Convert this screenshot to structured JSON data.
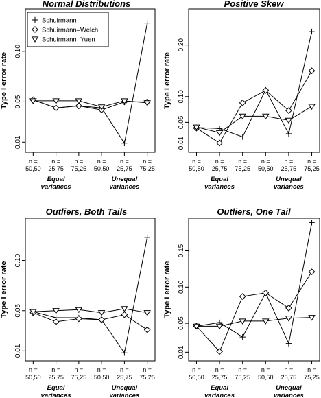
{
  "chart_data": [
    {
      "type": "line",
      "title": "Normal Distributions",
      "ylabel": "Type I error rate",
      "yticks": [
        0.01,
        0.05,
        0.1
      ],
      "ytick_labels": [
        "0.01",
        "0.05",
        "0.10"
      ],
      "ylim": [
        0.0,
        0.142
      ],
      "categories": [
        "n = 50,50",
        "n = 25,75",
        "n = 75,25",
        "n = 50,50",
        "n = 25,75",
        "n = 75,25"
      ],
      "groups": [
        {
          "label": "Equal variances"
        },
        {
          "label": "Unequal variances"
        }
      ],
      "legend": "top-left",
      "series": [
        {
          "name": "Schuirmann",
          "marker": "plus",
          "values": [
            0.052,
            0.044,
            0.046,
            0.044,
            0.009,
            0.128
          ]
        },
        {
          "name": "Schuirmann–Welch",
          "marker": "diamond",
          "values": [
            0.052,
            0.044,
            0.046,
            0.042,
            0.05,
            0.05
          ]
        },
        {
          "name": "Schuirmann–Yuen",
          "marker": "triangle",
          "values": [
            0.051,
            0.051,
            0.051,
            0.045,
            0.051,
            0.049
          ]
        }
      ]
    },
    {
      "type": "line",
      "title": "Positive Skew",
      "ylabel": "Type I error rate",
      "yticks": [
        0.01,
        0.05,
        0.1,
        0.2
      ],
      "ytick_labels": [
        "0.01",
        "0.05",
        "0.10",
        "0.20"
      ],
      "ylim": [
        -0.008,
        0.27
      ],
      "categories": [
        "n = 50,50",
        "n = 25,75",
        "n = 75,25",
        "n = 50,50",
        "n = 25,75",
        "n = 75,25"
      ],
      "groups": [
        {
          "label": "Equal variances"
        },
        {
          "label": "Unequal variances"
        }
      ],
      "series": [
        {
          "name": "Schuirmann",
          "marker": "plus",
          "values": [
            0.04,
            0.038,
            0.022,
            0.113,
            0.028,
            0.226
          ]
        },
        {
          "name": "Schuirmann–Welch",
          "marker": "diamond",
          "values": [
            0.039,
            0.01,
            0.088,
            0.112,
            0.073,
            0.15
          ]
        },
        {
          "name": "Schuirmann–Yuen",
          "marker": "triangle",
          "values": [
            0.041,
            0.03,
            0.062,
            0.062,
            0.054,
            0.081
          ]
        }
      ]
    },
    {
      "type": "line",
      "title": "Outliers, Both Tails",
      "ylabel": "Type I error rate",
      "yticks": [
        0.01,
        0.05,
        0.1
      ],
      "ytick_labels": [
        "0.01",
        "0.05",
        "0.10"
      ],
      "ylim": [
        0.0,
        0.142
      ],
      "categories": [
        "n = 50,50",
        "n = 25,75",
        "n = 75,25",
        "n = 50,50",
        "n = 25,75",
        "n = 75,25"
      ],
      "groups": [
        {
          "label": "Equal variances"
        },
        {
          "label": "Unequal variances"
        }
      ],
      "series": [
        {
          "name": "Schuirmann",
          "marker": "plus",
          "values": [
            0.049,
            0.043,
            0.043,
            0.041,
            0.008,
            0.123
          ]
        },
        {
          "name": "Schuirmann–Welch",
          "marker": "diamond",
          "values": [
            0.048,
            0.039,
            0.042,
            0.041,
            0.046,
            0.031
          ]
        },
        {
          "name": "Schuirmann–Yuen",
          "marker": "triangle",
          "values": [
            0.049,
            0.05,
            0.051,
            0.048,
            0.052,
            0.048
          ]
        }
      ]
    },
    {
      "type": "line",
      "title": "Outliers, One Tail",
      "ylabel": "Type I error rate",
      "yticks": [
        0.01,
        0.05,
        0.1,
        0.15
      ],
      "ytick_labels": [
        "0.01",
        "0.05",
        "0.10",
        "0.15"
      ],
      "ylim": [
        -0.002,
        0.195
      ],
      "categories": [
        "n = 50,50",
        "n = 25,75",
        "n = 75,25",
        "n = 50,50",
        "n = 25,75",
        "n = 75,25"
      ],
      "groups": [
        {
          "label": "Equal variances"
        },
        {
          "label": "Unequal variances"
        }
      ],
      "series": [
        {
          "name": "Schuirmann",
          "marker": "plus",
          "values": [
            0.046,
            0.051,
            0.031,
            0.092,
            0.022,
            0.189
          ]
        },
        {
          "name": "Schuirmann–Welch",
          "marker": "diamond",
          "values": [
            0.046,
            0.011,
            0.087,
            0.092,
            0.071,
            0.121
          ]
        },
        {
          "name": "Schuirmann–Yuen",
          "marker": "triangle",
          "values": [
            0.046,
            0.046,
            0.053,
            0.053,
            0.057,
            0.058
          ]
        }
      ]
    }
  ]
}
